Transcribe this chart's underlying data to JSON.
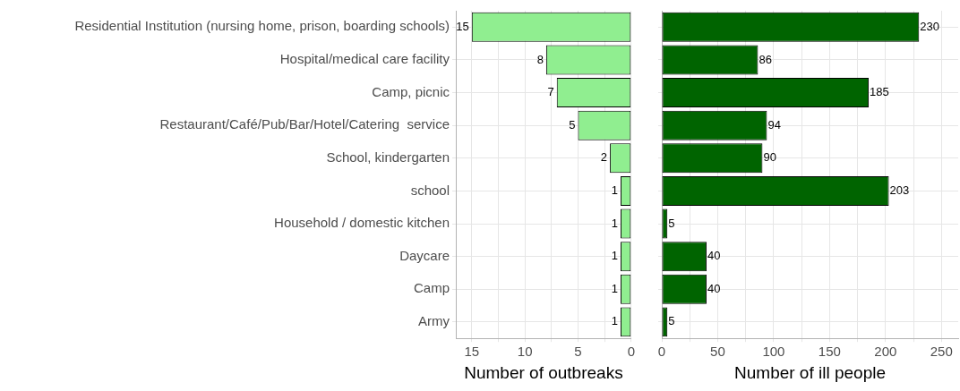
{
  "chart_data": [
    {
      "type": "bar",
      "orientation": "horizontal",
      "xlabel": "Number of outbreaks",
      "categories": [
        "Residential Institution (nursing home, prison, boarding schools)",
        "Hospital/medical care facility",
        "Camp, picnic",
        "Restaurant/Café/Pub/Bar/Hotel/Catering  service",
        "School, kindergarten",
        "school",
        "Household / domestic kitchen",
        "Daycare",
        "Camp",
        "Army"
      ],
      "values": [
        15,
        8,
        7,
        5,
        2,
        1,
        1,
        1,
        1,
        1
      ],
      "color": "#90ee90",
      "xlim": [
        16.5,
        0
      ],
      "xticks": [
        15,
        {
          "value": 12.5,
          "label": null
        },
        10,
        {
          "value": 7.5,
          "label": null
        },
        5,
        {
          "value": 2.5,
          "label": null
        },
        0
      ],
      "grid": true,
      "data_labels": true
    },
    {
      "type": "bar",
      "orientation": "horizontal",
      "xlabel": "Number of ill people",
      "categories": [
        null,
        null,
        null,
        null,
        null,
        null,
        null,
        null,
        null,
        null
      ],
      "values": [
        230,
        86,
        185,
        94,
        90,
        203,
        5,
        40,
        40,
        5
      ],
      "color": "#006400",
      "xlim": [
        0,
        265
      ],
      "xticks": [
        0,
        {
          "value": 25,
          "label": null
        },
        50,
        {
          "value": 75,
          "label": null
        },
        100,
        {
          "value": 125,
          "label": null
        },
        150,
        {
          "value": 175,
          "label": null
        },
        200,
        {
          "value": 225,
          "label": null
        },
        250
      ],
      "grid": true,
      "data_labels": true,
      "tick_labels": "x"
    }
  ]
}
